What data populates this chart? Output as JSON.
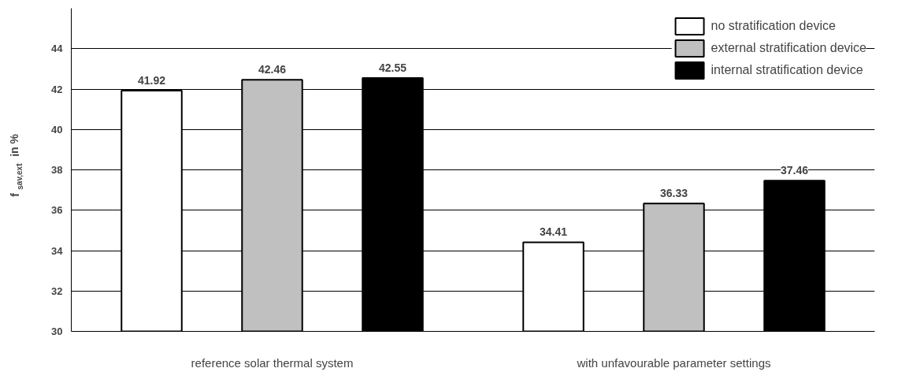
{
  "chart_data": {
    "type": "bar",
    "categories": [
      "reference solar thermal system",
      "with unfavourable parameter settings"
    ],
    "ylabel": "f$_{sav,ext}$ in %",
    "series": [
      {
        "name": "no stratification device",
        "color": "#ffffff",
        "values": [
          41.92,
          34.41
        ]
      },
      {
        "name": "external stratification device",
        "color": "#c0c0c0",
        "values": [
          42.46,
          36.33
        ]
      },
      {
        "name": "internal stratification device",
        "color": "#000000",
        "values": [
          42.55,
          37.46
        ]
      }
    ],
    "ylim": [
      30,
      46
    ],
    "yticks": [
      30,
      32,
      34,
      36,
      38,
      40,
      42,
      44
    ],
    "grid": "y",
    "legend": "top right",
    "data_labels": true
  }
}
